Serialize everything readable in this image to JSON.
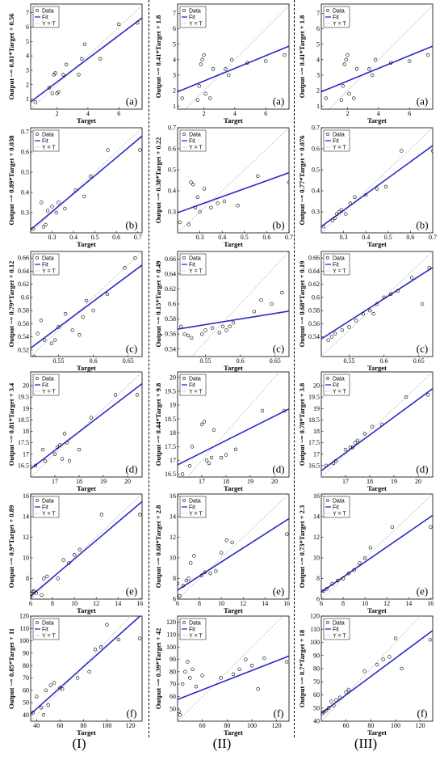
{
  "column_labels": [
    "(I)",
    "(II)",
    "(III)"
  ],
  "legend": [
    "Data",
    "Fit",
    "Y = T"
  ],
  "colors": {
    "fit": "#2b2bc8",
    "data": "#000000",
    "identity": "#b0b0b0"
  },
  "chart_data": [
    {
      "type": "scatter",
      "col": 0,
      "row": 0,
      "panel_label": "(a)",
      "xlabel": "Target",
      "ylabel": "Output ~= 0.81*Target + 0.56",
      "xlim": [
        0.3,
        7.5
      ],
      "ylim": [
        0.3,
        7.6
      ],
      "xticks": [
        2,
        4,
        6
      ],
      "yticks": [
        1,
        2,
        3,
        4,
        5,
        6,
        7
      ],
      "fit": [
        0.81,
        0.56
      ],
      "x": [
        0.6,
        1.5,
        1.7,
        1.8,
        1.9,
        2.0,
        2.1,
        2.4,
        2.6,
        3.4,
        3.6,
        3.8,
        4.8,
        6.0,
        7.2
      ],
      "y": [
        0.8,
        1.8,
        1.4,
        2.7,
        2.8,
        1.4,
        1.5,
        2.7,
        3.4,
        2.7,
        3.8,
        4.8,
        3.8,
        6.2,
        6.3
      ]
    },
    {
      "type": "scatter",
      "col": 1,
      "row": 0,
      "panel_label": "(a)",
      "xlabel": "Target",
      "ylabel": "Output ~= 0.41*Target + 1.8",
      "xlim": [
        0.3,
        7.5
      ],
      "ylim": [
        0.8,
        7.6
      ],
      "xticks": [
        2,
        4,
        6
      ],
      "yticks": [
        1,
        2,
        3,
        4,
        5,
        6,
        7
      ],
      "fit": [
        0.41,
        1.8
      ],
      "x": [
        0.6,
        1.6,
        1.7,
        1.8,
        1.9,
        2.0,
        2.1,
        2.4,
        2.6,
        3.4,
        3.6,
        3.8,
        4.8,
        6.0,
        7.2
      ],
      "y": [
        1.5,
        1.4,
        2.3,
        3.7,
        4.0,
        4.3,
        1.8,
        1.5,
        3.4,
        3.4,
        3.0,
        4.0,
        3.8,
        3.9,
        4.3
      ]
    },
    {
      "type": "scatter",
      "col": 2,
      "row": 0,
      "panel_label": "(a)",
      "xlabel": "Target",
      "ylabel": "Output ~= 0.41*Target + 1.8",
      "xlim": [
        0.3,
        7.5
      ],
      "ylim": [
        0.8,
        7.6
      ],
      "xticks": [
        2,
        4,
        6
      ],
      "yticks": [
        1,
        2,
        3,
        4,
        5,
        6,
        7
      ],
      "fit": [
        0.41,
        1.8
      ],
      "x": [
        0.6,
        1.6,
        1.7,
        1.8,
        1.9,
        2.0,
        2.1,
        2.4,
        2.6,
        3.4,
        3.6,
        3.8,
        4.8,
        6.0,
        7.2
      ],
      "y": [
        1.5,
        1.4,
        2.3,
        3.7,
        4.0,
        4.3,
        1.8,
        1.5,
        3.4,
        3.4,
        3.0,
        4.0,
        3.8,
        3.9,
        4.3
      ]
    },
    {
      "type": "scatter",
      "col": 0,
      "row": 1,
      "panel_label": "(b)",
      "xlabel": "Target",
      "ylabel": "Output ~= 0.89*Target + 0.038",
      "xlim": [
        0.2,
        0.72
      ],
      "ylim": [
        0.2,
        0.72
      ],
      "xticks": [
        0.3,
        0.4,
        0.5,
        0.6,
        0.7
      ],
      "yticks": [
        0.3,
        0.4,
        0.5,
        0.6,
        0.7
      ],
      "fit": [
        0.89,
        0.038
      ],
      "x": [
        0.21,
        0.25,
        0.26,
        0.27,
        0.28,
        0.3,
        0.32,
        0.33,
        0.36,
        0.41,
        0.45,
        0.48,
        0.56,
        0.71
      ],
      "y": [
        0.22,
        0.35,
        0.23,
        0.24,
        0.31,
        0.33,
        0.3,
        0.35,
        0.32,
        0.41,
        0.38,
        0.48,
        0.61,
        0.61
      ]
    },
    {
      "type": "scatter",
      "col": 1,
      "row": 1,
      "panel_label": "(b)",
      "xlabel": "Target",
      "ylabel": "Output ~= 0.38*Target + 0.22",
      "xlim": [
        0.2,
        0.7
      ],
      "ylim": [
        0.2,
        0.7
      ],
      "xticks": [
        0.3,
        0.4,
        0.5,
        0.6,
        0.7
      ],
      "yticks": [
        0.3,
        0.4,
        0.5,
        0.6,
        0.7
      ],
      "fit": [
        0.38,
        0.22
      ],
      "x": [
        0.21,
        0.25,
        0.26,
        0.27,
        0.28,
        0.29,
        0.3,
        0.32,
        0.35,
        0.38,
        0.41,
        0.47,
        0.56,
        0.7
      ],
      "y": [
        0.25,
        0.24,
        0.44,
        0.43,
        0.32,
        0.37,
        0.3,
        0.41,
        0.32,
        0.34,
        0.35,
        0.33,
        0.47,
        0.44
      ]
    },
    {
      "type": "scatter",
      "col": 2,
      "row": 1,
      "panel_label": "(b)",
      "xlabel": "Target",
      "ylabel": "Output ~= 0.77*Target + 0.076",
      "xlim": [
        0.2,
        0.7
      ],
      "ylim": [
        0.2,
        0.7
      ],
      "xticks": [
        0.3,
        0.4,
        0.5,
        0.6,
        0.7
      ],
      "yticks": [
        0.3,
        0.4,
        0.5,
        0.6,
        0.7
      ],
      "fit": [
        0.77,
        0.076
      ],
      "x": [
        0.21,
        0.25,
        0.26,
        0.27,
        0.28,
        0.29,
        0.31,
        0.33,
        0.35,
        0.4,
        0.45,
        0.49,
        0.56,
        0.7
      ],
      "y": [
        0.23,
        0.26,
        0.27,
        0.29,
        0.3,
        0.31,
        0.29,
        0.34,
        0.37,
        0.38,
        0.41,
        0.42,
        0.59,
        0.59
      ]
    },
    {
      "type": "scatter",
      "col": 0,
      "row": 2,
      "panel_label": "(c)",
      "xlabel": "Target",
      "ylabel": "Output ~= 0.79*Target + 0.12",
      "xlim": [
        0.51,
        0.67
      ],
      "ylim": [
        0.51,
        0.67
      ],
      "xticks": [
        0.55,
        0.6,
        0.65
      ],
      "yticks": [
        0.52,
        0.54,
        0.56,
        0.58,
        0.6,
        0.62,
        0.64,
        0.66
      ],
      "fit": [
        0.79,
        0.12
      ],
      "x": [
        0.515,
        0.52,
        0.525,
        0.53,
        0.54,
        0.545,
        0.55,
        0.56,
        0.57,
        0.58,
        0.585,
        0.59,
        0.6,
        0.62,
        0.645,
        0.66
      ],
      "y": [
        0.51,
        0.545,
        0.565,
        0.535,
        0.53,
        0.535,
        0.555,
        0.575,
        0.55,
        0.543,
        0.57,
        0.595,
        0.58,
        0.605,
        0.645,
        0.66
      ]
    },
    {
      "type": "scatter",
      "col": 1,
      "row": 2,
      "panel_label": "(c)",
      "xlabel": "Target",
      "ylabel": "Output ~= 0.15*Target + 0.49",
      "xlim": [
        0.51,
        0.67
      ],
      "ylim": [
        0.53,
        0.67
      ],
      "xticks": [
        0.55,
        0.6,
        0.65
      ],
      "yticks": [
        0.54,
        0.56,
        0.58,
        0.6,
        0.62,
        0.64,
        0.66
      ],
      "fit": [
        0.15,
        0.49
      ],
      "x": [
        0.515,
        0.52,
        0.525,
        0.53,
        0.545,
        0.55,
        0.56,
        0.57,
        0.575,
        0.58,
        0.585,
        0.59,
        0.62,
        0.63,
        0.645,
        0.66
      ],
      "y": [
        0.57,
        0.56,
        0.558,
        0.555,
        0.56,
        0.565,
        0.568,
        0.562,
        0.57,
        0.565,
        0.57,
        0.575,
        0.59,
        0.605,
        0.6,
        0.615
      ]
    },
    {
      "type": "scatter",
      "col": 2,
      "row": 2,
      "panel_label": "(c)",
      "xlabel": "Target",
      "ylabel": "Output ~= 0.68*Target + 0.19",
      "xlim": [
        0.51,
        0.67
      ],
      "ylim": [
        0.51,
        0.67
      ],
      "xticks": [
        0.55,
        0.6,
        0.65
      ],
      "yticks": [
        0.54,
        0.56,
        0.58,
        0.6,
        0.62,
        0.64,
        0.66
      ],
      "fit": [
        0.68,
        0.19
      ],
      "x": [
        0.52,
        0.525,
        0.53,
        0.54,
        0.55,
        0.56,
        0.57,
        0.58,
        0.585,
        0.59,
        0.6,
        0.61,
        0.62,
        0.64,
        0.655,
        0.665
      ],
      "y": [
        0.535,
        0.54,
        0.545,
        0.55,
        0.555,
        0.565,
        0.575,
        0.58,
        0.575,
        0.59,
        0.6,
        0.605,
        0.61,
        0.63,
        0.59,
        0.645
      ]
    },
    {
      "type": "scatter",
      "col": 0,
      "row": 3,
      "panel_label": "(d)",
      "xlabel": "Target",
      "ylabel": "Output ~= 0.81*Target + 3.4",
      "xlim": [
        16,
        20.6
      ],
      "ylim": [
        16,
        20.6
      ],
      "xticks": [
        17,
        18,
        19,
        20
      ],
      "yticks": [
        16.5,
        17,
        17.5,
        18,
        18.5,
        19,
        19.5,
        20
      ],
      "fit": [
        0.81,
        3.4
      ],
      "x": [
        16.2,
        16.5,
        16.6,
        17.0,
        17.1,
        17.2,
        17.3,
        17.4,
        17.5,
        17.6,
        18.0,
        18.5,
        19.5,
        20.4
      ],
      "y": [
        16.5,
        17.2,
        16.7,
        17.0,
        17.3,
        17.4,
        16.8,
        17.9,
        17.5,
        16.7,
        17.2,
        18.6,
        19.6,
        19.6
      ]
    },
    {
      "type": "scatter",
      "col": 1,
      "row": 3,
      "panel_label": "(d)",
      "xlabel": "Target",
      "ylabel": "Output ~= 0.44*Target + 9.8",
      "xlim": [
        16,
        20.6
      ],
      "ylim": [
        16.4,
        20.2
      ],
      "xticks": [
        17,
        18,
        19,
        20
      ],
      "yticks": [
        16.5,
        17,
        17.5,
        18,
        18.5,
        19,
        19.5,
        20
      ],
      "fit": [
        0.44,
        9.8
      ],
      "x": [
        16.2,
        16.5,
        16.6,
        17.0,
        17.1,
        17.2,
        17.3,
        17.4,
        17.5,
        17.8,
        18.0,
        18.4,
        19.5,
        20.4
      ],
      "y": [
        16.5,
        16.8,
        17.5,
        18.3,
        18.4,
        17.0,
        16.9,
        17.1,
        18.1,
        17.1,
        17.2,
        17.4,
        18.8,
        18.8
      ]
    },
    {
      "type": "scatter",
      "col": 2,
      "row": 3,
      "panel_label": "(d)",
      "xlabel": "Target",
      "ylabel": "Output ~= 0.78*Target + 3.8",
      "xlim": [
        16,
        20.6
      ],
      "ylim": [
        16,
        20.6
      ],
      "xticks": [
        17,
        18,
        19,
        20
      ],
      "yticks": [
        16.5,
        17,
        17.5,
        18,
        18.5,
        19,
        19.5,
        20
      ],
      "fit": [
        0.78,
        3.8
      ],
      "x": [
        16.2,
        16.5,
        16.6,
        17.0,
        17.2,
        17.3,
        17.4,
        17.5,
        17.8,
        18.1,
        18.5,
        19.5,
        20.4
      ],
      "y": [
        16.5,
        16.6,
        16.7,
        17.2,
        17.3,
        17.3,
        17.5,
        17.6,
        17.9,
        18.2,
        18.3,
        19.5,
        19.6
      ]
    },
    {
      "type": "scatter",
      "col": 0,
      "row": 4,
      "panel_label": "(e)",
      "xlabel": "Target",
      "ylabel": "Output ~= 0.9*Target + 0.89",
      "xlim": [
        6,
        16.2
      ],
      "ylim": [
        6,
        16.2
      ],
      "xticks": [
        6,
        8,
        10,
        12,
        14,
        16
      ],
      "yticks": [
        8,
        10,
        12,
        14,
        16
      ],
      "fit": [
        0.9,
        0.89
      ],
      "x": [
        6.0,
        6.1,
        6.2,
        6.3,
        6.5,
        7.0,
        7.2,
        7.5,
        8.5,
        9.0,
        9.5,
        10.0,
        10.5,
        12.5,
        16.0
      ],
      "y": [
        6.2,
        6.5,
        6.7,
        6.8,
        6.6,
        6.4,
        8.0,
        8.2,
        8.0,
        9.8,
        9.5,
        10.3,
        10.8,
        14.2,
        14.2
      ]
    },
    {
      "type": "scatter",
      "col": 1,
      "row": 4,
      "panel_label": "(e)",
      "xlabel": "Target",
      "ylabel": "Output ~= 0.68*Target + 2.8",
      "xlim": [
        6,
        16.2
      ],
      "ylim": [
        6,
        16.2
      ],
      "xticks": [
        6,
        8,
        10,
        12,
        14,
        16
      ],
      "yticks": [
        6,
        8,
        10,
        12,
        14,
        16
      ],
      "fit": [
        0.68,
        2.8
      ],
      "x": [
        6.0,
        6.2,
        6.5,
        6.8,
        7.0,
        7.2,
        7.5,
        8.2,
        8.5,
        9.0,
        9.5,
        10.0,
        10.5,
        11.0,
        16.0
      ],
      "y": [
        7.5,
        6.3,
        7.3,
        7.8,
        8.0,
        9.5,
        10.2,
        8.3,
        8.6,
        8.5,
        8.7,
        10.5,
        11.7,
        11.5,
        12.3
      ]
    },
    {
      "type": "scatter",
      "col": 2,
      "row": 4,
      "panel_label": "(e)",
      "xlabel": "Target",
      "ylabel": "Output ~= 0.73*Target + 2.3",
      "xlim": [
        6,
        16.2
      ],
      "ylim": [
        6,
        16.2
      ],
      "xticks": [
        6,
        8,
        10,
        12,
        14,
        16
      ],
      "yticks": [
        6,
        8,
        10,
        12,
        14,
        16
      ],
      "fit": [
        0.73,
        2.3
      ],
      "x": [
        6.2,
        6.5,
        7.0,
        7.5,
        8.0,
        8.5,
        9.0,
        9.5,
        10.0,
        10.5,
        12.5,
        16.0
      ],
      "y": [
        6.8,
        7.0,
        7.5,
        7.8,
        8.0,
        8.5,
        8.8,
        9.5,
        10.0,
        11.0,
        13.0,
        13.0
      ]
    },
    {
      "type": "scatter",
      "col": 0,
      "row": 5,
      "panel_label": "(f)",
      "xlabel": "Target",
      "ylabel": "Output ~= 0.85*Target + 11",
      "xlim": [
        35,
        130
      ],
      "ylim": [
        35,
        120
      ],
      "xticks": [
        40,
        60,
        80,
        100,
        120
      ],
      "yticks": [
        40,
        50,
        60,
        70,
        80,
        90,
        100,
        110,
        120
      ],
      "fit": [
        0.85,
        11
      ],
      "x": [
        37,
        40,
        44,
        46,
        48,
        50,
        52,
        55,
        60,
        62,
        75,
        85,
        90,
        95,
        100,
        110,
        128
      ],
      "y": [
        42,
        55,
        46,
        40,
        60,
        48,
        64,
        66,
        62,
        61,
        70,
        75,
        93,
        95,
        113,
        101,
        102
      ]
    },
    {
      "type": "scatter",
      "col": 1,
      "row": 5,
      "panel_label": "(f)",
      "xlabel": "Target",
      "ylabel": "Output ~= 0.39*Target + 42",
      "xlim": [
        40,
        130
      ],
      "ylim": [
        40,
        125
      ],
      "xticks": [
        60,
        80,
        100,
        120
      ],
      "yticks": [
        50,
        60,
        70,
        80,
        90,
        100,
        110,
        120
      ],
      "fit": [
        0.39,
        42
      ],
      "x": [
        41,
        42,
        44,
        46,
        48,
        50,
        52,
        55,
        60,
        75,
        85,
        90,
        95,
        100,
        105,
        110,
        128
      ],
      "y": [
        48,
        45,
        70,
        80,
        88,
        75,
        82,
        68,
        77,
        75,
        78,
        82,
        90,
        85,
        66,
        91,
        88
      ]
    },
    {
      "type": "scatter",
      "col": 2,
      "row": 5,
      "panel_label": "(f)",
      "xlabel": "Target",
      "ylabel": "Output ~= 0.7*Target + 18",
      "xlim": [
        40,
        130
      ],
      "ylim": [
        40,
        120
      ],
      "xticks": [
        60,
        80,
        100,
        120
      ],
      "yticks": [
        40,
        50,
        60,
        70,
        80,
        90,
        100,
        110,
        120
      ],
      "fit": [
        0.7,
        18
      ],
      "x": [
        41,
        42,
        44,
        46,
        48,
        50,
        52,
        55,
        60,
        62,
        75,
        85,
        90,
        95,
        100,
        105,
        128
      ],
      "y": [
        46,
        47,
        48,
        50,
        55,
        52,
        56,
        58,
        62,
        64,
        78,
        83,
        87,
        89,
        103,
        80,
        102
      ]
    }
  ]
}
